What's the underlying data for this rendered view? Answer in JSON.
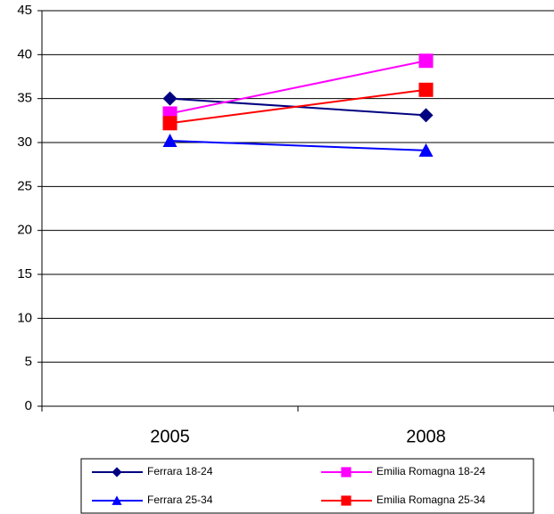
{
  "chart_data": {
    "type": "line",
    "categories": [
      "2005",
      "2008"
    ],
    "series": [
      {
        "name": "Ferrara 18-24",
        "color": "#000080",
        "marker": "diamond",
        "values": [
          35,
          33.1
        ]
      },
      {
        "name": "Emilia Romagna 18-24",
        "color": "#ff00ff",
        "marker": "square",
        "values": [
          33.3,
          39.3
        ]
      },
      {
        "name": "Ferrara 25-34",
        "color": "#0000ff",
        "marker": "triangle",
        "values": [
          30.2,
          29.1
        ]
      },
      {
        "name": "Emilia Romagna 25-34",
        "color": "#ff0000",
        "marker": "square",
        "values": [
          32.2,
          36
        ]
      }
    ],
    "ylim": [
      0,
      45
    ],
    "yticks": [
      0,
      5,
      10,
      15,
      20,
      25,
      30,
      35,
      40,
      45
    ],
    "grid": true
  }
}
